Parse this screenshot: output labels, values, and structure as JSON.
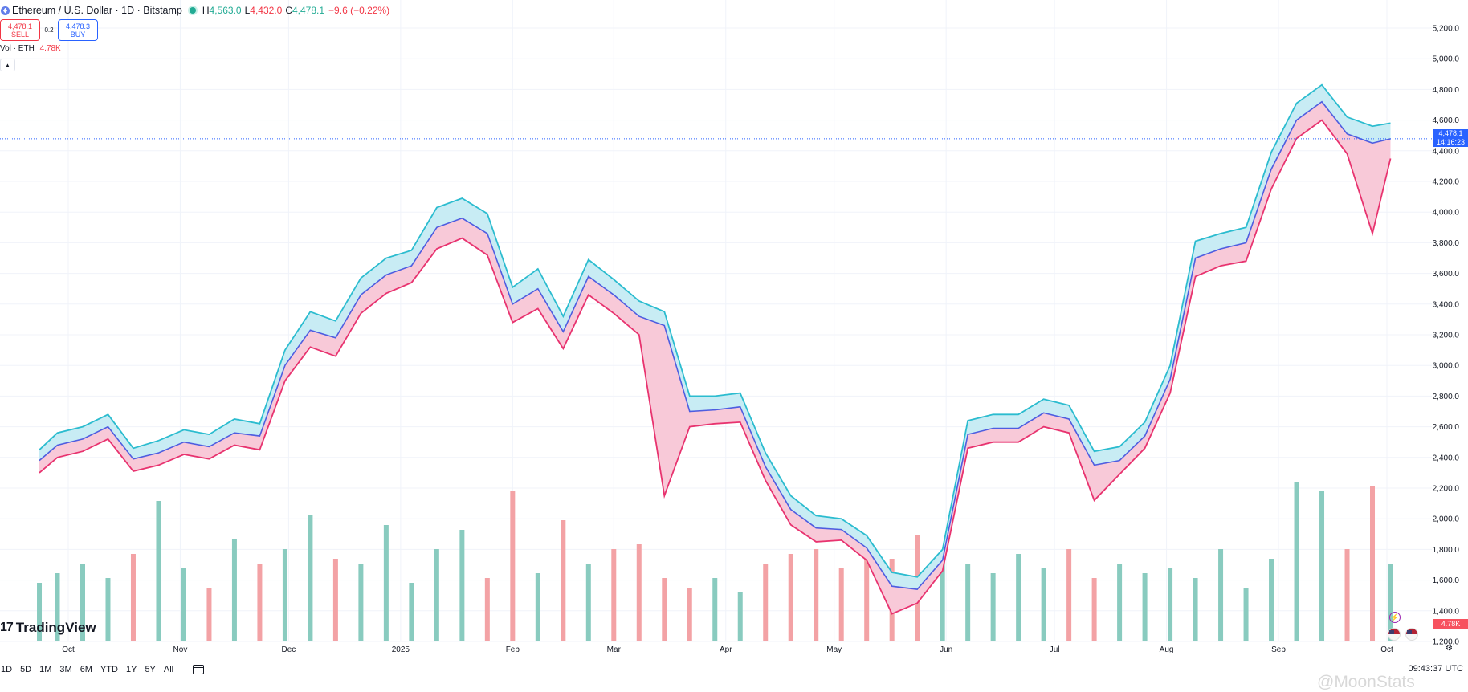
{
  "header": {
    "symbol": "Ethereum / U.S. Dollar · 1D · Bitstamp",
    "o_label": "O",
    "h_label": "H",
    "high": "4,563.0",
    "l_label": "L",
    "low": "4,432.0",
    "c_label": "C",
    "close": "4,478.1",
    "change": "−9.6 (−0.22%)",
    "sell_price": "4,478.1",
    "sell_label": "SELL",
    "spread": "0.2",
    "buy_price": "4,478.3",
    "buy_label": "BUY",
    "vol_label": "Vol · ETH",
    "vol_value": "4.78K"
  },
  "price_tag": {
    "price": "4,478.1",
    "countdown": "14:16:23"
  },
  "volume_tag": "4.78K",
  "brand": "TradingView",
  "timeframes": [
    "1D",
    "5D",
    "1M",
    "3M",
    "6M",
    "YTD",
    "1Y",
    "5Y",
    "All"
  ],
  "clock": "09:43:37 UTC",
  "watermark": "@MoonStats",
  "colors": {
    "upper": "#2bbccf",
    "lower": "#e8336f",
    "mid": "#4e5de0",
    "up_fill": "#c8ecf4",
    "down_fill": "#f8c9d8",
    "vol_up": "#89cbbf",
    "vol_down": "#f3a2a5",
    "accent": "#2962ff"
  },
  "chart_data": {
    "type": "area",
    "y_axis": {
      "ticks": [
        1200,
        1400,
        1600,
        1800,
        2000,
        2200,
        2400,
        2600,
        2800,
        3000,
        3200,
        3400,
        3600,
        3800,
        4000,
        4200,
        4400,
        4600,
        4800,
        5000,
        5200
      ],
      "tick_labels": [
        "1,200.0",
        "1,400.0",
        "1,600.0",
        "1,800.0",
        "2,000.0",
        "2,200.0",
        "2,400.0",
        "2,600.0",
        "2,800.0",
        "3,000.0",
        "3,200.0",
        "3,400.0",
        "3,600.0",
        "3,800.0",
        "4,000.0",
        "4,200.0",
        "4,400.0",
        "4,600.0",
        "4,800.0",
        "5,000.0",
        "5,200.0"
      ],
      "position": "right"
    },
    "x_axis": {
      "months": [
        "Oct",
        "Nov",
        "Dec",
        "2025",
        "Feb",
        "Mar",
        "Apr",
        "May",
        "Jun",
        "Jul",
        "Aug",
        "Sep",
        "Oct"
      ],
      "month_day_index": [
        8,
        39,
        69,
        100,
        131,
        159,
        190,
        220,
        251,
        281,
        312,
        343,
        373
      ]
    },
    "last_price": 4478.1,
    "series": [
      {
        "name": "",
        "role": "high",
        "x": [
          0,
          5,
          12,
          19,
          26,
          33,
          40,
          47,
          54,
          61,
          68,
          75,
          82,
          89,
          96,
          103,
          110,
          117,
          124,
          131,
          138,
          145,
          152,
          159,
          166,
          173,
          180,
          187,
          194,
          201,
          208,
          215,
          222,
          229,
          236,
          243,
          250,
          257,
          264,
          271,
          278,
          285,
          292,
          299,
          306,
          313,
          320,
          327,
          334,
          341,
          348,
          355,
          362,
          369,
          374
        ],
        "values": [
          2450,
          2560,
          2600,
          2680,
          2460,
          2510,
          2580,
          2550,
          2650,
          2620,
          3100,
          3350,
          3290,
          3570,
          3700,
          3750,
          4030,
          4090,
          3990,
          3510,
          3630,
          3320,
          3690,
          3560,
          3420,
          3350,
          2800,
          2800,
          2820,
          2430,
          2150,
          2020,
          2000,
          1890,
          1650,
          1620,
          1800,
          2640,
          2680,
          2680,
          2780,
          2740,
          2440,
          2470,
          2630,
          3000,
          3810,
          3860,
          3900,
          4390,
          4710,
          4830,
          4620,
          4560,
          4580
        ]
      },
      {
        "name": "",
        "role": "close",
        "x": [
          0,
          5,
          12,
          19,
          26,
          33,
          40,
          47,
          54,
          61,
          68,
          75,
          82,
          89,
          96,
          103,
          110,
          117,
          124,
          131,
          138,
          145,
          152,
          159,
          166,
          173,
          180,
          187,
          194,
          201,
          208,
          215,
          222,
          229,
          236,
          243,
          250,
          257,
          264,
          271,
          278,
          285,
          292,
          299,
          306,
          313,
          320,
          327,
          334,
          341,
          348,
          355,
          362,
          369,
          374
        ],
        "values": [
          2380,
          2480,
          2520,
          2600,
          2390,
          2430,
          2500,
          2470,
          2560,
          2540,
          3000,
          3230,
          3180,
          3460,
          3590,
          3650,
          3900,
          3960,
          3860,
          3400,
          3500,
          3220,
          3580,
          3460,
          3320,
          3260,
          2700,
          2710,
          2730,
          2340,
          2060,
          1940,
          1930,
          1810,
          1560,
          1540,
          1730,
          2550,
          2590,
          2590,
          2690,
          2650,
          2350,
          2380,
          2540,
          2910,
          3700,
          3760,
          3800,
          4280,
          4600,
          4720,
          4510,
          4450,
          4478
        ]
      },
      {
        "name": "",
        "role": "low",
        "x": [
          0,
          5,
          12,
          19,
          26,
          33,
          40,
          47,
          54,
          61,
          68,
          75,
          82,
          89,
          96,
          103,
          110,
          117,
          124,
          131,
          138,
          145,
          152,
          159,
          166,
          173,
          180,
          187,
          194,
          201,
          208,
          215,
          222,
          229,
          236,
          243,
          250,
          257,
          264,
          271,
          278,
          285,
          292,
          299,
          306,
          313,
          320,
          327,
          334,
          341,
          348,
          355,
          362,
          369,
          374
        ],
        "values": [
          2300,
          2400,
          2440,
          2520,
          2310,
          2350,
          2420,
          2390,
          2480,
          2450,
          2900,
          3120,
          3060,
          3340,
          3470,
          3540,
          3760,
          3830,
          3720,
          3280,
          3370,
          3110,
          3460,
          3340,
          3200,
          2150,
          2600,
          2620,
          2630,
          2250,
          1960,
          1850,
          1860,
          1730,
          1380,
          1450,
          1660,
          2460,
          2500,
          2500,
          2600,
          2560,
          2120,
          2290,
          2460,
          2820,
          3580,
          3650,
          3680,
          4150,
          4480,
          4600,
          4380,
          3860,
          4350
        ]
      },
      {
        "name": "",
        "role": "volume",
        "x": [
          0,
          5,
          12,
          19,
          26,
          33,
          40,
          47,
          54,
          61,
          68,
          75,
          82,
          89,
          96,
          103,
          110,
          117,
          124,
          131,
          138,
          145,
          152,
          159,
          166,
          173,
          180,
          187,
          194,
          201,
          208,
          215,
          222,
          229,
          236,
          243,
          250,
          257,
          264,
          271,
          278,
          285,
          292,
          299,
          306,
          313,
          320,
          327,
          334,
          341,
          348,
          355,
          362,
          369,
          374
        ],
        "values": [
          1.2,
          1.4,
          1.6,
          1.3,
          1.8,
          2.9,
          1.5,
          1.1,
          2.1,
          1.6,
          1.9,
          2.6,
          1.7,
          1.6,
          2.4,
          1.2,
          1.9,
          2.3,
          1.3,
          3.1,
          1.4,
          2.5,
          1.6,
          1.9,
          2.0,
          1.3,
          1.1,
          1.3,
          1.0,
          1.6,
          1.8,
          1.9,
          1.5,
          2.0,
          1.7,
          2.2,
          1.8,
          1.6,
          1.4,
          1.8,
          1.5,
          1.9,
          1.3,
          1.6,
          1.4,
          1.5,
          1.3,
          1.9,
          1.1,
          1.7,
          3.3,
          3.1,
          1.9,
          3.2,
          1.6
        ]
      }
    ]
  }
}
